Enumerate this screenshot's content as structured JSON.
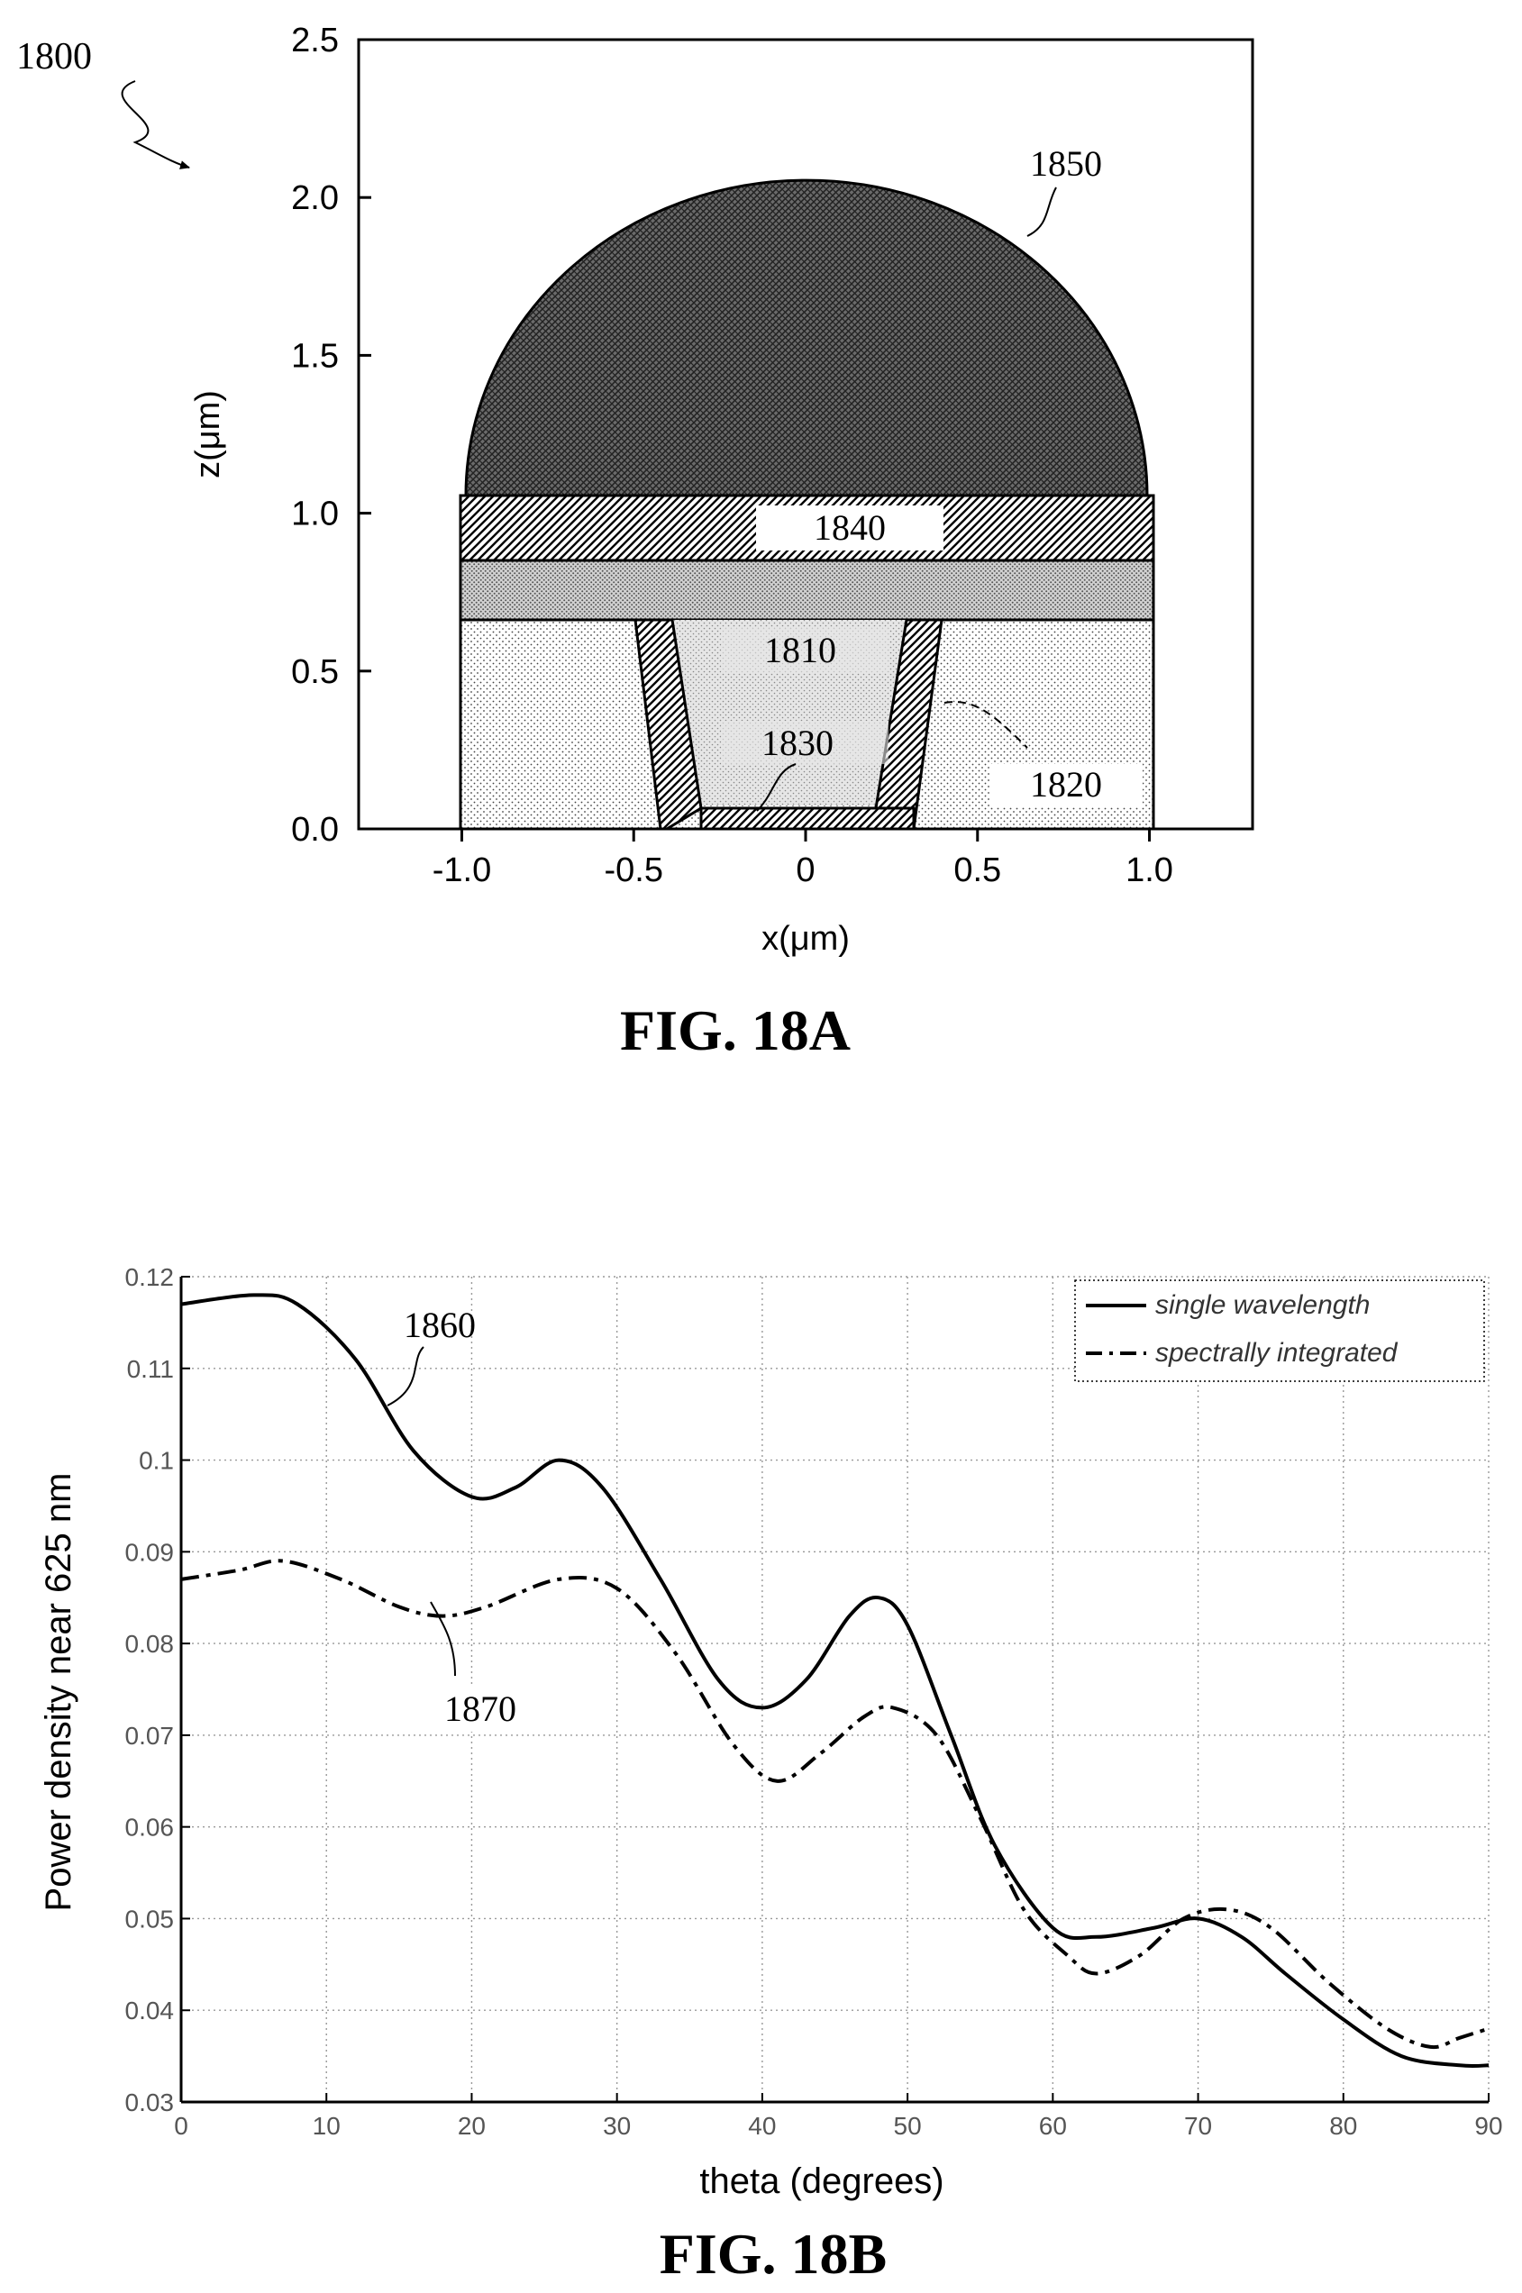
{
  "figA": {
    "ref_number": "1800",
    "caption": "FIG. 18A",
    "xlabel": "x(μm)",
    "ylabel": "z(μm)",
    "xticks": [
      -1.0,
      -0.5,
      0,
      0.5,
      1.0
    ],
    "xtick_labels": [
      "-1.0",
      "-0.5",
      "0",
      "0.5",
      "1.0"
    ],
    "yticks": [
      0.0,
      0.5,
      1.0,
      1.5,
      2.0,
      2.5
    ],
    "ytick_labels": [
      "0.0",
      "0.5",
      "1.0",
      "1.5",
      "2.0",
      "2.5"
    ],
    "xlim": [
      -1.3,
      1.3
    ],
    "ylim": [
      0.0,
      2.5
    ],
    "labels": {
      "l1850": "1850",
      "l1840": "1840",
      "l1810": "1810",
      "l1830": "1830",
      "l1820": "1820"
    }
  },
  "figB": {
    "caption": "FIG. 18B",
    "ref_1860": "1860",
    "ref_1870": "1870"
  },
  "chart_data": {
    "type": "line",
    "title": "",
    "xlabel": "theta (degrees)",
    "ylabel": "Power density near 625 nm",
    "xlim": [
      0,
      90
    ],
    "ylim": [
      0.03,
      0.12
    ],
    "xticks": [
      0,
      10,
      20,
      30,
      40,
      50,
      60,
      70,
      80,
      90
    ],
    "xtick_labels": [
      "0",
      "10",
      "20",
      "30",
      "40",
      "50",
      "60",
      "70",
      "80",
      "90"
    ],
    "yticks": [
      0.03,
      0.04,
      0.05,
      0.06,
      0.07,
      0.08,
      0.09,
      0.1,
      0.11,
      0.12
    ],
    "ytick_labels": [
      "0.03",
      "0.04",
      "0.05",
      "0.06",
      "0.07",
      "0.08",
      "0.09",
      "0.1",
      "0.11",
      "0.12"
    ],
    "grid": true,
    "legend_position": "top-right",
    "series": [
      {
        "name": "single wavelength",
        "style": "solid",
        "x": [
          0,
          5,
          8,
          12,
          16,
          20,
          23,
          26,
          29,
          33,
          37,
          40,
          43,
          46,
          48,
          50,
          53,
          56,
          60,
          63,
          67,
          70,
          73,
          76,
          80,
          84,
          88,
          90
        ],
        "y": [
          0.117,
          0.118,
          0.117,
          0.111,
          0.101,
          0.096,
          0.097,
          0.1,
          0.097,
          0.087,
          0.076,
          0.073,
          0.076,
          0.083,
          0.085,
          0.082,
          0.07,
          0.058,
          0.049,
          0.048,
          0.049,
          0.05,
          0.048,
          0.044,
          0.039,
          0.035,
          0.034,
          0.034
        ]
      },
      {
        "name": "spectrally integrated",
        "style": "dashed",
        "x": [
          0,
          4,
          7,
          11,
          15,
          18,
          21,
          26,
          30,
          34,
          38,
          41,
          44,
          47,
          49,
          52,
          55,
          58,
          61,
          63,
          66,
          69,
          72,
          75,
          79,
          83,
          86,
          88,
          90
        ],
        "y": [
          0.087,
          0.088,
          0.089,
          0.087,
          0.084,
          0.083,
          0.084,
          0.087,
          0.086,
          0.079,
          0.069,
          0.065,
          0.068,
          0.072,
          0.073,
          0.07,
          0.061,
          0.051,
          0.046,
          0.044,
          0.046,
          0.05,
          0.051,
          0.049,
          0.043,
          0.038,
          0.036,
          0.037,
          0.038
        ]
      }
    ]
  }
}
